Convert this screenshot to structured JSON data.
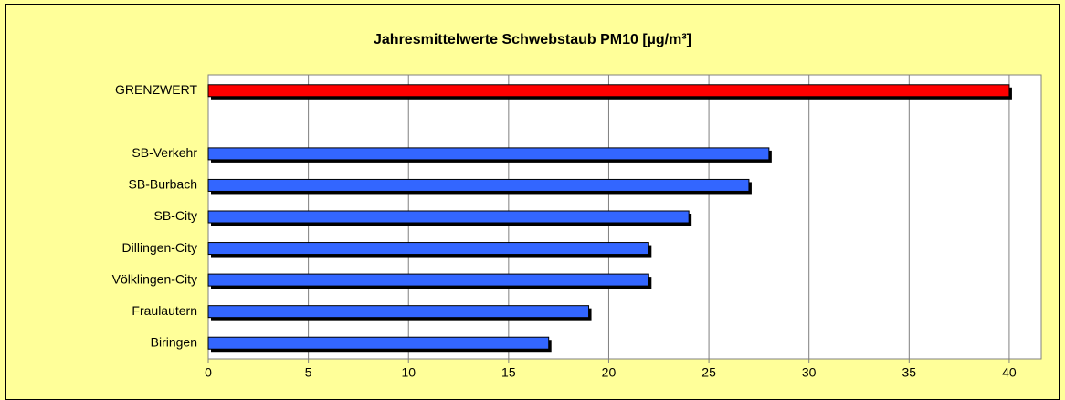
{
  "chart_data": {
    "type": "bar",
    "orientation": "horizontal",
    "title": "Jahresmittelwerte  Schwebstaub PM10 [µg/m³]",
    "categories": [
      "GRENZWERT",
      null,
      "SB-Verkehr",
      "SB-Burbach",
      "SB-City",
      "Dillingen-City",
      "Völklingen-City",
      "Fraulautern",
      "Biringen"
    ],
    "values": [
      40,
      null,
      28,
      27,
      24,
      22,
      22,
      19,
      17
    ],
    "colors": [
      "#ff0000",
      "#3366ff",
      "#3366ff",
      "#3366ff",
      "#3366ff",
      "#3366ff",
      "#3366ff",
      "#3366ff",
      "#3366ff"
    ],
    "xlim": [
      0,
      41.6
    ],
    "xticks": [
      0,
      5,
      10,
      15,
      20,
      25,
      30,
      35,
      40
    ],
    "grid": true
  }
}
